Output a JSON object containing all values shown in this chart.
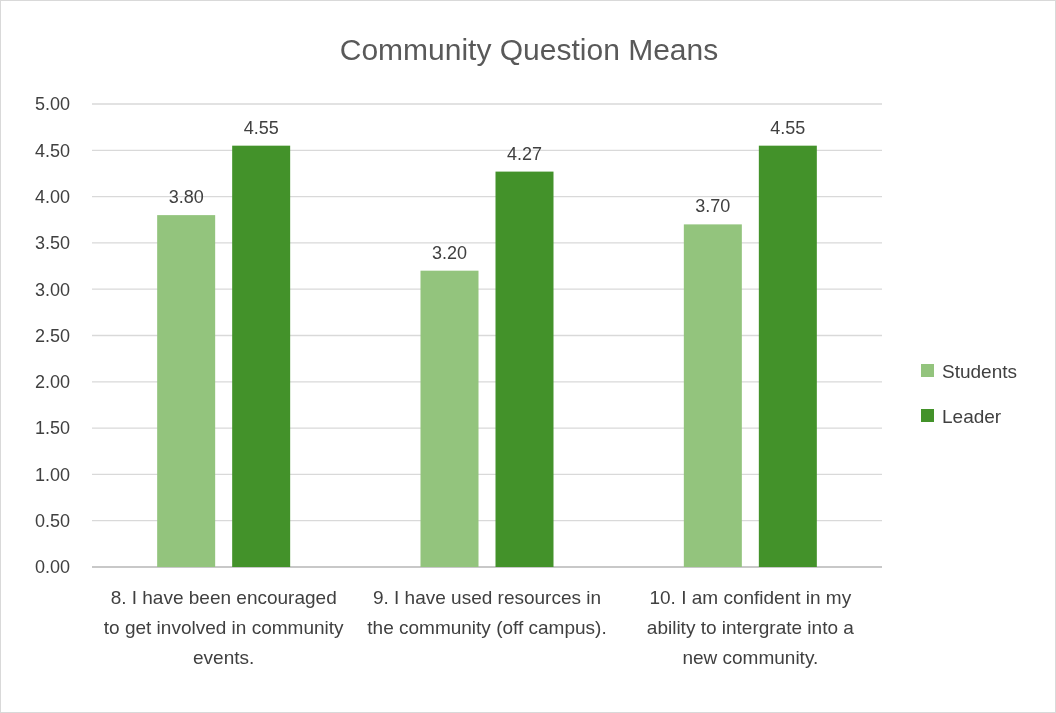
{
  "chart_data": {
    "type": "bar",
    "title": "Community Question Means",
    "categories": [
      "8. I have been encouraged to get involved in community events.",
      "9. I have used resources in the community (off campus).",
      "10. I am confident in my ability to intergrate into a new community."
    ],
    "series": [
      {
        "name": "Students",
        "color": "#93c47d",
        "values": [
          3.8,
          3.2,
          3.7
        ]
      },
      {
        "name": "Leader",
        "color": "#43922a",
        "values": [
          4.55,
          4.27,
          4.55
        ]
      }
    ],
    "value_labels": [
      [
        "3.80",
        "3.20",
        "3.70"
      ],
      [
        "4.55",
        "4.27",
        "4.55"
      ]
    ],
    "ylim": [
      0,
      5
    ],
    "yticks": [
      {
        "value": 0,
        "label": "0.00"
      },
      {
        "value": 0.5,
        "label": "0.50"
      },
      {
        "value": 1,
        "label": "1.00"
      },
      {
        "value": 1.5,
        "label": "1.50"
      },
      {
        "value": 2,
        "label": "2.00"
      },
      {
        "value": 2.5,
        "label": "2.50"
      },
      {
        "value": 3,
        "label": "3.00"
      },
      {
        "value": 3.5,
        "label": "3.50"
      },
      {
        "value": 4,
        "label": "4.00"
      },
      {
        "value": 4.5,
        "label": "4.50"
      },
      {
        "value": 5,
        "label": "5.00"
      }
    ],
    "grid": "y",
    "legend": "right"
  }
}
